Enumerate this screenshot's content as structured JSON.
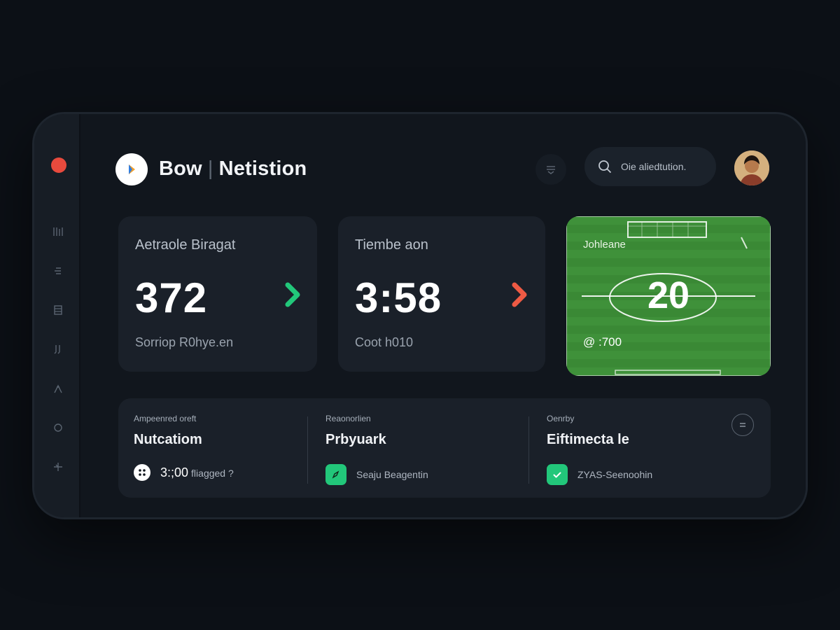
{
  "app": {
    "title_left": "Bow",
    "title_right": "Netistion"
  },
  "search": {
    "placeholder": "Oie aliedtution."
  },
  "sidebar": {
    "icons": [
      "chart-icon",
      "list-icon",
      "grid-icon",
      "music-icon",
      "person-icon",
      "circle-icon",
      "share-icon"
    ]
  },
  "cards": [
    {
      "label": "Aetraole Biragat",
      "value": "372",
      "sub": "Sorriop R0hye.en",
      "arrow_color": "#22c77a"
    },
    {
      "label": "Tiembe aon",
      "value": "3:58",
      "sub": "Coot h010",
      "arrow_color": "#ee5a44"
    },
    {
      "label": "Johleane",
      "value": "20",
      "sub": "@ :700"
    }
  ],
  "bottom": {
    "columns": [
      {
        "key": "Ampeenred oreft",
        "value": "Nutcatiom",
        "row_value": "3:;00",
        "row_text": "fliagged ?"
      },
      {
        "key": "Reaonorlien",
        "value": "Prbyuark",
        "row_text": "Seaju Beagentin"
      },
      {
        "key": "Oenrby",
        "value": "Eiftimecta le",
        "row_text": "ZYAS-Seenoohin"
      }
    ]
  },
  "colors": {
    "accent_green": "#22c77a",
    "accent_red": "#ee5a44",
    "status_dot": "#e84a3d"
  }
}
